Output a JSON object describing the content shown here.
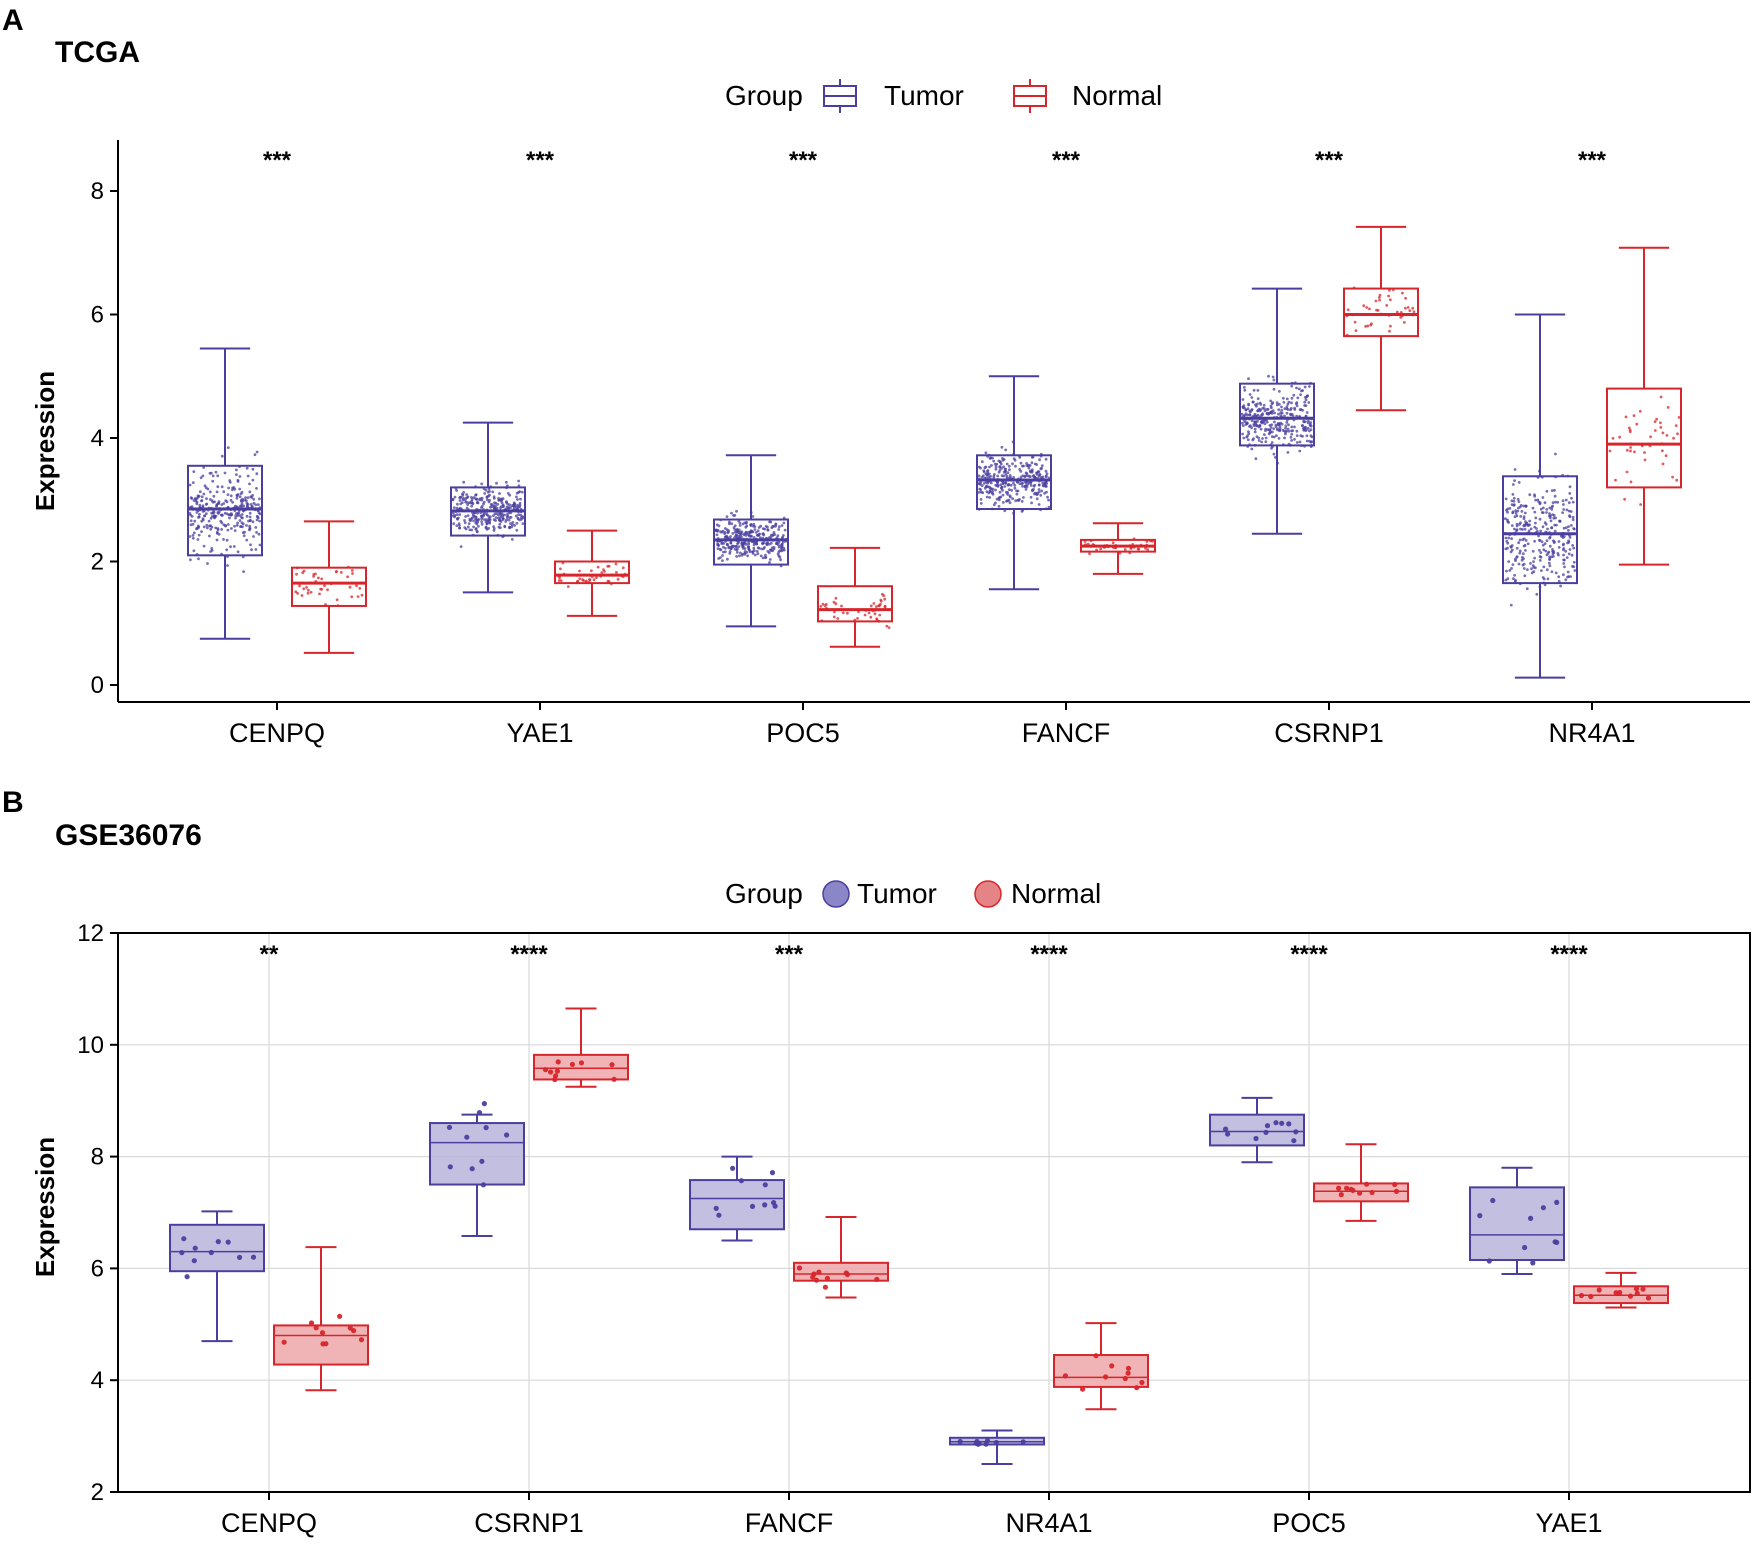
{
  "colors": {
    "tumor": "#4A3F9F",
    "normal": "#D7262B",
    "tumor_fill": "#B9B4DC",
    "normal_fill": "#EFA7A9",
    "grid": "#D9D9D9",
    "axis": "#000000"
  },
  "chart_data": [
    {
      "panel": "A",
      "type": "box",
      "title": "TCGA",
      "legend": {
        "title": "Group",
        "items": [
          "Tumor",
          "Normal"
        ],
        "position": "top"
      },
      "ylabel": "Expression",
      "xlabel": "",
      "ylim": [
        0,
        8.8
      ],
      "yticks": [
        0,
        2,
        4,
        6,
        8
      ],
      "grid": false,
      "categories": [
        "CENPQ",
        "YAE1",
        "POC5",
        "FANCF",
        "CSRNP1",
        "NR4A1"
      ],
      "significance": [
        "***",
        "***",
        "***",
        "***",
        "***",
        "***"
      ],
      "series": [
        {
          "name": "Tumor",
          "n_points": 320,
          "stats": [
            {
              "min": 0.75,
              "q1": 2.1,
              "median": 2.85,
              "q3": 3.55,
              "max": 5.45
            },
            {
              "min": 1.5,
              "q1": 2.42,
              "median": 2.82,
              "q3": 3.2,
              "max": 4.25
            },
            {
              "min": 0.95,
              "q1": 1.95,
              "median": 2.35,
              "q3": 2.68,
              "max": 3.72
            },
            {
              "min": 1.55,
              "q1": 2.85,
              "median": 3.32,
              "q3": 3.72,
              "max": 5.0
            },
            {
              "min": 2.45,
              "q1": 3.88,
              "median": 4.32,
              "q3": 4.88,
              "max": 6.42
            },
            {
              "min": 0.12,
              "q1": 1.65,
              "median": 2.45,
              "q3": 3.38,
              "max": 6.0
            }
          ]
        },
        {
          "name": "Normal",
          "n_points": 45,
          "stats": [
            {
              "min": 0.52,
              "q1": 1.28,
              "median": 1.65,
              "q3": 1.9,
              "max": 2.65
            },
            {
              "min": 1.12,
              "q1": 1.65,
              "median": 1.78,
              "q3": 2.0,
              "max": 2.5
            },
            {
              "min": 0.62,
              "q1": 1.03,
              "median": 1.22,
              "q3": 1.6,
              "max": 2.22
            },
            {
              "min": 1.8,
              "q1": 2.16,
              "median": 2.25,
              "q3": 2.35,
              "max": 2.62
            },
            {
              "min": 4.45,
              "q1": 5.65,
              "median": 6.0,
              "q3": 6.42,
              "max": 7.42
            },
            {
              "min": 1.95,
              "q1": 3.2,
              "median": 3.9,
              "q3": 4.8,
              "max": 7.08
            }
          ]
        }
      ]
    },
    {
      "panel": "B",
      "type": "box",
      "title": "GSE36076",
      "legend": {
        "title": "Group",
        "items": [
          "Tumor",
          "Normal"
        ],
        "position": "top"
      },
      "ylabel": "Expression",
      "xlabel": "",
      "ylim": [
        2,
        12
      ],
      "yticks": [
        2,
        4,
        6,
        8,
        10,
        12
      ],
      "grid": true,
      "categories": [
        "CENPQ",
        "CSRNP1",
        "FANCF",
        "NR4A1",
        "POC5",
        "YAE1"
      ],
      "significance": [
        "**",
        "****",
        "***",
        "****",
        "****",
        "****"
      ],
      "series": [
        {
          "name": "Tumor",
          "n_points": 10,
          "stats": [
            {
              "min": 4.7,
              "q1": 5.95,
              "median": 6.3,
              "q3": 6.78,
              "max": 7.02
            },
            {
              "min": 6.58,
              "q1": 7.5,
              "median": 8.25,
              "q3": 8.6,
              "max": 8.75
            },
            {
              "min": 6.5,
              "q1": 6.7,
              "median": 7.25,
              "q3": 7.58,
              "max": 8.0
            },
            {
              "min": 2.5,
              "q1": 2.85,
              "median": 2.9,
              "q3": 2.97,
              "max": 3.1
            },
            {
              "min": 7.9,
              "q1": 8.2,
              "median": 8.45,
              "q3": 8.75,
              "max": 9.05
            },
            {
              "min": 5.9,
              "q1": 6.15,
              "median": 6.6,
              "q3": 7.45,
              "max": 7.8
            }
          ]
        },
        {
          "name": "Normal",
          "n_points": 10,
          "stats": [
            {
              "min": 3.82,
              "q1": 4.28,
              "median": 4.8,
              "q3": 4.98,
              "max": 6.38
            },
            {
              "min": 9.25,
              "q1": 9.38,
              "median": 9.58,
              "q3": 9.82,
              "max": 10.65
            },
            {
              "min": 5.48,
              "q1": 5.78,
              "median": 5.9,
              "q3": 6.1,
              "max": 6.92
            },
            {
              "min": 3.48,
              "q1": 3.88,
              "median": 4.05,
              "q3": 4.45,
              "max": 5.02
            },
            {
              "min": 6.85,
              "q1": 7.2,
              "median": 7.38,
              "q3": 7.52,
              "max": 8.22
            },
            {
              "min": 5.3,
              "q1": 5.38,
              "median": 5.52,
              "q3": 5.68,
              "max": 5.92
            }
          ]
        }
      ]
    }
  ]
}
